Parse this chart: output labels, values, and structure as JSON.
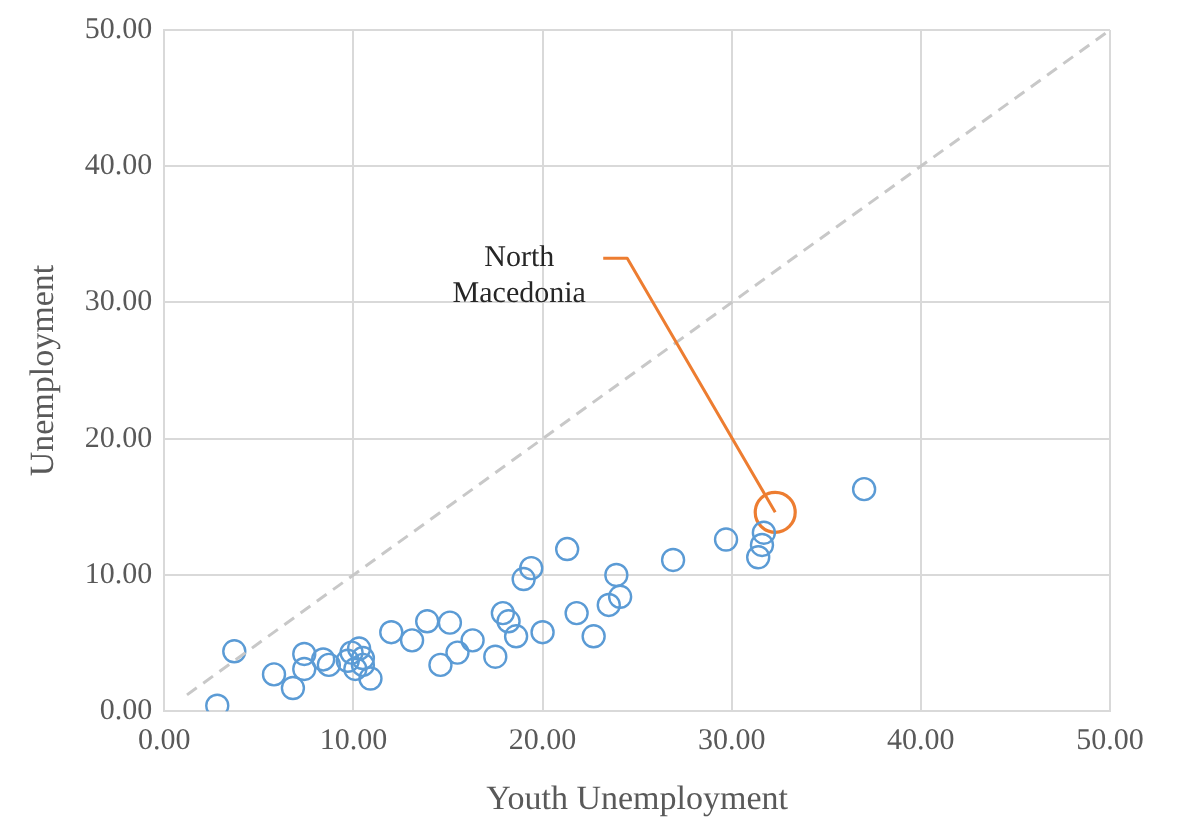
{
  "chart_data": {
    "type": "scatter",
    "xlabel": "Youth Unemployment",
    "ylabel": "Unemployment",
    "xlim": [
      0,
      50
    ],
    "ylim": [
      0,
      50
    ],
    "xticks": [
      {
        "value": 0,
        "label": "0.00"
      },
      {
        "value": 10,
        "label": "10.00"
      },
      {
        "value": 20,
        "label": "20.00"
      },
      {
        "value": 30,
        "label": "30.00"
      },
      {
        "value": 40,
        "label": "40.00"
      },
      {
        "value": 50,
        "label": "50.00"
      }
    ],
    "yticks": [
      {
        "value": 0,
        "label": "0.00"
      },
      {
        "value": 10,
        "label": "10.00"
      },
      {
        "value": 20,
        "label": "20.00"
      },
      {
        "value": 30,
        "label": "30.00"
      },
      {
        "value": 40,
        "label": "40.00"
      },
      {
        "value": 50,
        "label": "50.00"
      }
    ],
    "grid": true,
    "legend": false,
    "marker": "circle",
    "series": [
      {
        "type": "line",
        "color": "#c8c8c8",
        "line_style": "dashed",
        "marker": "none",
        "x": [
          1.2,
          50
        ],
        "values": [
          1.2,
          50
        ]
      },
      {
        "color": "#5b9bd5",
        "x": [
          2.8,
          3.7,
          5.8,
          6.8,
          7.4,
          7.4,
          8.4,
          8.7,
          9.9,
          10.3,
          10.5,
          10.1,
          10.9,
          10.5,
          9.7,
          12.0,
          13.1,
          13.9,
          14.6,
          15.1,
          15.5,
          16.3,
          17.5,
          17.9,
          18.2,
          18.6,
          19.0,
          19.4,
          20.0,
          21.3,
          21.8,
          22.7,
          23.5,
          23.9,
          24.1,
          26.9,
          29.7,
          31.4,
          31.6,
          31.7,
          37.0
        ],
        "values": [
          0.4,
          4.4,
          2.7,
          1.7,
          4.2,
          3.1,
          3.8,
          3.4,
          4.3,
          4.6,
          3.4,
          3.1,
          2.4,
          3.9,
          3.7,
          5.8,
          5.2,
          6.6,
          3.4,
          6.5,
          4.3,
          5.2,
          4.0,
          7.2,
          6.6,
          5.5,
          9.7,
          10.5,
          5.8,
          11.9,
          7.2,
          5.5,
          7.8,
          10.0,
          8.4,
          11.1,
          12.6,
          11.3,
          12.2,
          13.1,
          16.3
        ]
      },
      {
        "color": "#ed7d31",
        "x": [
          32.3
        ],
        "values": [
          14.6
        ]
      }
    ],
    "annotations": [
      {
        "text": "North Macedonia",
        "x": 32.3,
        "y": 14.6
      }
    ]
  }
}
